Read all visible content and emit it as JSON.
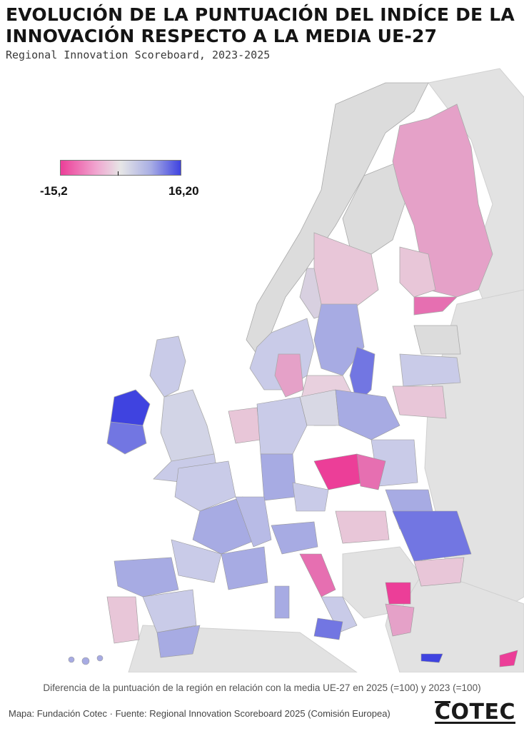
{
  "header": {
    "title": "EVOLUCIÓN DE LA PUNTUACIÓN DEL INDÍCE DE LA INNOVACIÓN RESPECTO A LA MEDIA UE-27",
    "subtitle": "Regional Innovation Scoreboard, 2023-2025"
  },
  "legend": {
    "min_label": "-15,2",
    "max_label": "16,20",
    "min_value": -15.2,
    "max_value": 16.2,
    "colors": [
      "#ec3e98",
      "#f0a6d0",
      "#e6e6e6",
      "#a9aee4",
      "#3f43e0"
    ]
  },
  "footer": {
    "caption": "Diferencia de la puntuación de la región en relación con la media UE-27 en 2025 (=100) y 2023  (=100)",
    "source": "Mapa: Fundación Cotec · Fuente: Regional Innovation Scoreboard 2025 (Comisión Europea)",
    "logo": "COTEC"
  },
  "palette": {
    "background_land": "#e2e2e2",
    "neutral": "#dcdcdc",
    "light_blue": "#c9cbe8",
    "mid_blue": "#a7abe3",
    "strong_blue": "#7276e2",
    "deep_blue": "#3f43e0",
    "light_pink": "#e8c6d8",
    "mid_pink": "#e5a1c8",
    "strong_pink": "#e66fb1",
    "deep_pink": "#ec3e98"
  }
}
